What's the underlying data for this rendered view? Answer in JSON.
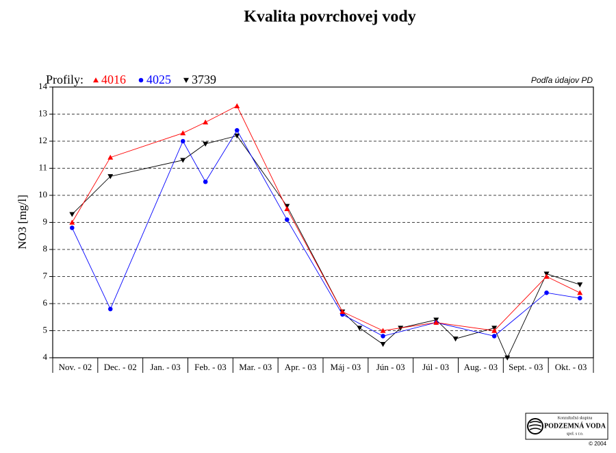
{
  "chart_data": {
    "type": "line",
    "title": "Kvalita povrchovej vody",
    "y_label": "NO3 [mg/l]",
    "legend_label": "Profily:",
    "source_note": "Podľa údajov PD",
    "categories": [
      "Nov. - 02",
      "Dec. - 02",
      "Jan. - 03",
      "Feb. - 03",
      "Mar. - 03",
      "Apr. - 03",
      "Máj - 03",
      "Jún - 03",
      "Júl - 03",
      "Aug. - 03",
      "Sept. - 03",
      "Okt. - 03"
    ],
    "xlim": [
      0,
      12
    ],
    "ylim": [
      4,
      14
    ],
    "yticks": [
      4,
      5,
      6,
      7,
      8,
      9,
      10,
      11,
      12,
      13,
      14
    ],
    "grid": true,
    "series": [
      {
        "name": "3739",
        "color": "#000000",
        "marker": "triangle-down",
        "x": [
          0.43,
          1.28,
          2.89,
          3.39,
          4.09,
          5.2,
          6.43,
          6.81,
          7.33,
          7.72,
          8.51,
          8.94,
          9.8,
          10.09,
          10.96,
          11.7
        ],
        "values": [
          9.3,
          10.7,
          11.3,
          11.9,
          12.2,
          9.6,
          5.7,
          5.1,
          4.5,
          5.1,
          5.4,
          4.7,
          5.1,
          4.0,
          7.1,
          6.7
        ]
      },
      {
        "name": "4025",
        "color": "#0000ff",
        "marker": "circle",
        "x": [
          0.43,
          1.28,
          2.89,
          3.39,
          4.09,
          5.2,
          6.43,
          7.33,
          8.51,
          9.8,
          10.96,
          11.7
        ],
        "values": [
          8.8,
          5.8,
          12.0,
          10.5,
          12.4,
          9.1,
          5.6,
          4.8,
          5.3,
          4.8,
          6.4,
          6.2
        ]
      },
      {
        "name": "4016",
        "color": "#ff0000",
        "marker": "triangle-up",
        "x": [
          0.43,
          1.28,
          2.89,
          3.39,
          4.09,
          5.2,
          6.43,
          7.33,
          8.51,
          9.8,
          10.96,
          11.7
        ],
        "values": [
          9.0,
          11.4,
          12.3,
          12.7,
          13.3,
          9.5,
          5.7,
          5.0,
          5.3,
          5.0,
          7.0,
          6.4
        ]
      }
    ]
  },
  "logo": {
    "line1": "Konzultačná skupina",
    "line2": "PODZEMNÁ VODA",
    "line3": "spol. s r.o.",
    "copyright": "© 2004"
  }
}
